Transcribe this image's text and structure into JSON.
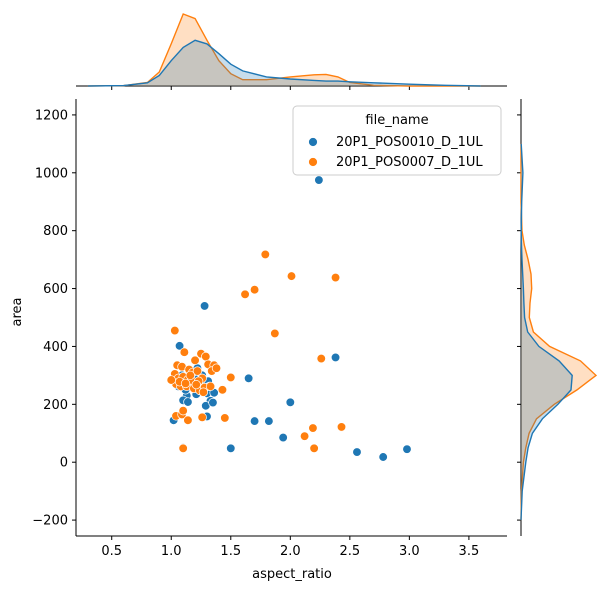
{
  "chart_data": {
    "type": "scatter",
    "kind": "jointplot",
    "xlabel": "aspect_ratio",
    "ylabel": "area",
    "xlim": [
      0.2,
      3.82
    ],
    "ylim": [
      -255,
      1255
    ],
    "xticks": [
      0.5,
      1.0,
      1.5,
      2.0,
      2.5,
      3.0,
      3.5
    ],
    "xtick_labels": [
      "0.5",
      "1.0",
      "1.5",
      "2.0",
      "2.5",
      "3.0",
      "3.5"
    ],
    "yticks": [
      -200,
      0,
      200,
      400,
      600,
      800,
      1000,
      1200
    ],
    "ytick_labels": [
      "−200",
      "0",
      "200",
      "400",
      "600",
      "800",
      "1000",
      "1200"
    ],
    "legend": {
      "title": "file_name",
      "placement": "top-right"
    },
    "series": [
      {
        "name": "20P1_POS0010_D_1UL",
        "color": "#1f77b4",
        "points": [
          [
            2.24,
            975
          ],
          [
            1.28,
            540
          ],
          [
            2.38,
            362
          ],
          [
            1.65,
            290
          ],
          [
            2.0,
            207
          ],
          [
            1.07,
            402
          ],
          [
            1.13,
            230
          ],
          [
            1.16,
            285
          ],
          [
            1.22,
            325
          ],
          [
            1.27,
            265
          ],
          [
            1.3,
            238
          ],
          [
            1.33,
            212
          ],
          [
            1.29,
            195
          ],
          [
            1.36,
            240
          ],
          [
            1.06,
            262
          ],
          [
            1.12,
            250
          ],
          [
            1.19,
            296
          ],
          [
            1.24,
            248
          ],
          [
            1.1,
            214
          ],
          [
            1.14,
            208
          ],
          [
            1.09,
            300
          ],
          [
            1.31,
            280
          ],
          [
            1.35,
            206
          ],
          [
            1.02,
            145
          ],
          [
            1.3,
            158
          ],
          [
            1.1,
            50
          ],
          [
            1.5,
            48
          ],
          [
            1.7,
            142
          ],
          [
            1.82,
            142
          ],
          [
            1.94,
            85
          ],
          [
            2.56,
            35
          ],
          [
            2.78,
            18
          ],
          [
            2.98,
            45
          ],
          [
            1.18,
            275
          ],
          [
            1.08,
            282
          ],
          [
            1.21,
            235
          ],
          [
            1.26,
            300
          ],
          [
            1.32,
            262
          ]
        ]
      },
      {
        "name": "20P1_POS0007_D_1UL",
        "color": "#ff7f0e",
        "points": [
          [
            1.79,
            718
          ],
          [
            2.01,
            643
          ],
          [
            2.38,
            638
          ],
          [
            1.7,
            596
          ],
          [
            1.62,
            580
          ],
          [
            1.87,
            445
          ],
          [
            1.03,
            455
          ],
          [
            2.26,
            358
          ],
          [
            1.11,
            380
          ],
          [
            1.25,
            375
          ],
          [
            1.29,
            365
          ],
          [
            1.31,
            338
          ],
          [
            1.36,
            335
          ],
          [
            1.2,
            352
          ],
          [
            1.05,
            335
          ],
          [
            1.09,
            330
          ],
          [
            1.15,
            320
          ],
          [
            1.18,
            310
          ],
          [
            1.22,
            315
          ],
          [
            1.34,
            315
          ],
          [
            1.38,
            325
          ],
          [
            1.5,
            293
          ],
          [
            1.03,
            305
          ],
          [
            1.06,
            290
          ],
          [
            1.1,
            295
          ],
          [
            1.14,
            285
          ],
          [
            1.17,
            282
          ],
          [
            1.26,
            290
          ],
          [
            1.04,
            270
          ],
          [
            1.08,
            262
          ],
          [
            1.13,
            262
          ],
          [
            1.19,
            255
          ],
          [
            1.24,
            248
          ],
          [
            1.28,
            258
          ],
          [
            1.33,
            262
          ],
          [
            1.43,
            250
          ],
          [
            1.07,
            278
          ],
          [
            1.16,
            300
          ],
          [
            1.12,
            272
          ],
          [
            1.23,
            280
          ],
          [
            1.27,
            242
          ],
          [
            1.45,
            153
          ],
          [
            1.26,
            155
          ],
          [
            1.04,
            160
          ],
          [
            1.09,
            165
          ],
          [
            1.1,
            178
          ],
          [
            1.14,
            145
          ],
          [
            1.1,
            48
          ],
          [
            2.19,
            118
          ],
          [
            2.43,
            122
          ],
          [
            2.12,
            90
          ],
          [
            2.2,
            48
          ],
          [
            1.0,
            284
          ],
          [
            1.21,
            268
          ]
        ]
      }
    ],
    "marginal_x": {
      "type": "kde",
      "grid": [
        0.3,
        0.6,
        0.8,
        0.9,
        1.0,
        1.1,
        1.2,
        1.3,
        1.4,
        1.5,
        1.6,
        1.8,
        2.0,
        2.2,
        2.3,
        2.4,
        2.5,
        2.7,
        3.0,
        3.3,
        3.6
      ],
      "series": [
        {
          "name": "20P1_POS0010_D_1UL",
          "color": "#1f77b4",
          "density": [
            0.0,
            0.01,
            0.09,
            0.3,
            0.72,
            1.1,
            1.3,
            1.2,
            0.92,
            0.62,
            0.43,
            0.26,
            0.2,
            0.16,
            0.14,
            0.14,
            0.12,
            0.09,
            0.05,
            0.02,
            0.0
          ]
        },
        {
          "name": "20P1_POS0007_D_1UL",
          "color": "#ff7f0e",
          "density": [
            0.0,
            0.01,
            0.1,
            0.4,
            1.2,
            2.05,
            1.92,
            1.3,
            0.72,
            0.35,
            0.18,
            0.18,
            0.26,
            0.32,
            0.33,
            0.26,
            0.1,
            0.02,
            0.0,
            0.0,
            0.0
          ]
        }
      ]
    },
    "marginal_y": {
      "type": "kde",
      "grid": [
        -200,
        -100,
        0,
        50,
        100,
        150,
        200,
        250,
        300,
        350,
        400,
        450,
        500,
        550,
        600,
        650,
        700,
        750,
        800,
        900,
        1000,
        1100
      ],
      "series": [
        {
          "name": "20P1_POS0010_D_1UL",
          "color": "#1f77b4",
          "density": [
            0.0,
            0.05,
            0.2,
            0.3,
            0.48,
            0.9,
            1.55,
            2.1,
            2.15,
            1.6,
            0.75,
            0.28,
            0.15,
            0.12,
            0.1,
            0.07,
            0.04,
            0.02,
            0.01,
            0.03,
            0.08,
            0.01
          ]
        },
        {
          "name": "20P1_POS0007_D_1UL",
          "color": "#ff7f0e",
          "density": [
            0.0,
            0.02,
            0.1,
            0.2,
            0.34,
            0.65,
            1.4,
            2.35,
            3.15,
            2.5,
            1.2,
            0.52,
            0.35,
            0.38,
            0.45,
            0.42,
            0.3,
            0.14,
            0.04,
            0.0,
            0.0,
            0.0
          ]
        }
      ]
    }
  }
}
